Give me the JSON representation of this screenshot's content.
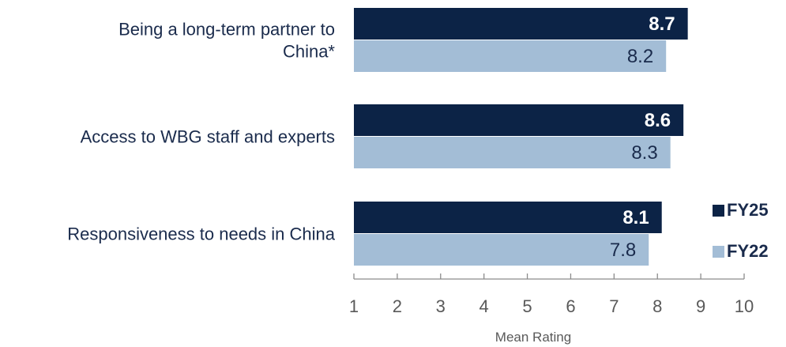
{
  "chart_data": {
    "type": "bar",
    "orientation": "horizontal",
    "categories": [
      "Being a long-term partner to China*",
      "Access to WBG staff and experts",
      "Responsiveness to needs in China"
    ],
    "category_lines": [
      [
        "Being a long-term partner to",
        "China*"
      ],
      [
        "Access to WBG staff and experts"
      ],
      [
        "Responsiveness to needs in China"
      ]
    ],
    "series": [
      {
        "name": "FY25",
        "values": [
          8.7,
          8.6,
          8.1
        ],
        "value_labels": [
          "8.7",
          "8.6",
          "8.1"
        ],
        "color": "#0c2346"
      },
      {
        "name": "FY22",
        "values": [
          8.2,
          8.3,
          7.8
        ],
        "value_labels": [
          "8.2",
          "8.3",
          "7.8"
        ],
        "color": "#a3bdd6"
      }
    ],
    "xlabel": "Mean Rating",
    "xlim": [
      1,
      10
    ],
    "xticks": [
      "1",
      "2",
      "3",
      "4",
      "5",
      "6",
      "7",
      "8",
      "9",
      "10"
    ],
    "grid": false,
    "legend_position": "right"
  }
}
